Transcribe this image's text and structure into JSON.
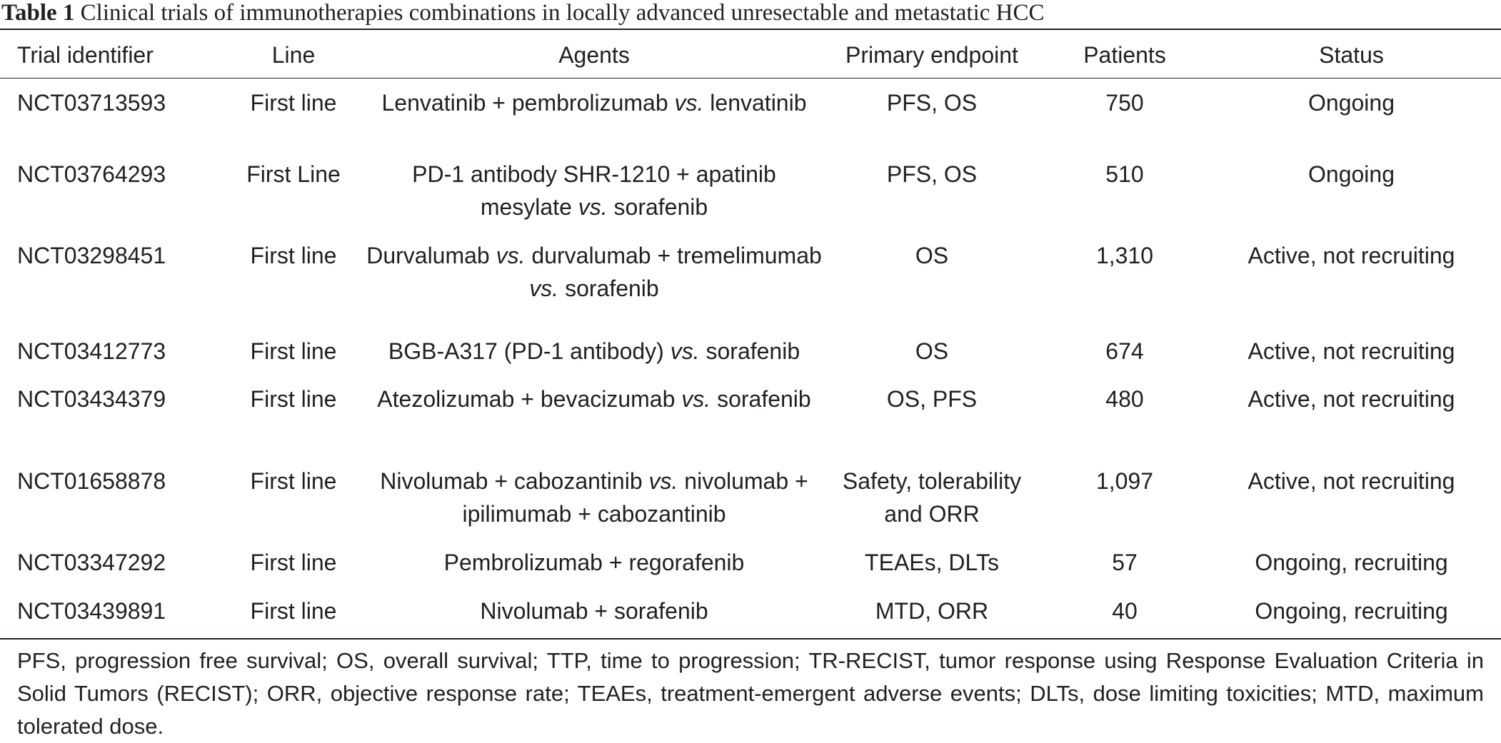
{
  "caption": {
    "label": "Table 1",
    "text": "Clinical trials of immunotherapies combinations in locally advanced unresectable and metastatic HCC"
  },
  "columns": [
    "Trial identifier",
    "Line",
    "Agents",
    "Primary endpoint",
    "Patients",
    "Status"
  ],
  "rows": [
    {
      "id": "NCT03713593",
      "line": "First line",
      "agents": [
        {
          "t": "Lenvatinib + pembrolizumab "
        },
        {
          "t": "vs.",
          "i": true
        },
        {
          "t": " lenvatinib"
        }
      ],
      "endpoint": "PFS, OS",
      "patients": "750",
      "status": "Ongoing"
    },
    {
      "id": "NCT03764293",
      "line": "First Line",
      "agents": [
        {
          "t": "PD-1 antibody SHR-1210 + apatinib mesylate "
        },
        {
          "t": "vs.",
          "i": true
        },
        {
          "t": " sorafenib"
        }
      ],
      "endpoint": "PFS, OS",
      "patients": "510",
      "status": "Ongoing"
    },
    {
      "id": "NCT03298451",
      "line": "First line",
      "agents": [
        {
          "t": "Durvalumab "
        },
        {
          "t": "vs.",
          "i": true
        },
        {
          "t": " durvalumab + tremelimumab "
        },
        {
          "t": "vs.",
          "i": true
        },
        {
          "t": " sorafenib"
        }
      ],
      "endpoint": "OS",
      "patients": "1,310",
      "status": "Active, not recruiting"
    },
    {
      "id": "NCT03412773",
      "line": "First line",
      "agents": [
        {
          "t": "BGB-A317 (PD-1 antibody) "
        },
        {
          "t": "vs.",
          "i": true
        },
        {
          "t": " sorafenib"
        }
      ],
      "endpoint": "OS",
      "patients": "674",
      "status": "Active, not recruiting"
    },
    {
      "id": "NCT03434379",
      "line": "First line",
      "agents": [
        {
          "t": "Atezolizumab + bevacizumab "
        },
        {
          "t": "vs.",
          "i": true
        },
        {
          "t": " sorafenib"
        }
      ],
      "endpoint": "OS, PFS",
      "patients": "480",
      "status": "Active, not recruiting"
    },
    {
      "id": "NCT01658878",
      "line": "First line",
      "agents": [
        {
          "t": "Nivolumab + cabozantinib "
        },
        {
          "t": "vs.",
          "i": true
        },
        {
          "t": " nivolumab + ipilimumab + cabozantinib"
        }
      ],
      "endpoint": "Safety, tolerability and ORR",
      "patients": "1,097",
      "status": "Active, not recruiting"
    },
    {
      "id": "NCT03347292",
      "line": "First line",
      "agents": [
        {
          "t": "Pembrolizumab + regorafenib"
        }
      ],
      "endpoint": "TEAEs, DLTs",
      "patients": "57",
      "status": "Ongoing, recruiting"
    },
    {
      "id": "NCT03439891",
      "line": "First line",
      "agents": [
        {
          "t": "Nivolumab + sorafenib"
        }
      ],
      "endpoint": "MTD, ORR",
      "patients": "40",
      "status": "Ongoing, recruiting"
    }
  ],
  "footnote": "PFS, progression free survival; OS, overall survival; TTP, time to progression; TR-RECIST, tumor response using Response Evaluation Criteria in Solid Tumors (RECIST); ORR, objective response rate; TEAEs, treatment-emergent adverse events; DLTs, dose limiting toxicities; MTD, maximum tolerated dose."
}
